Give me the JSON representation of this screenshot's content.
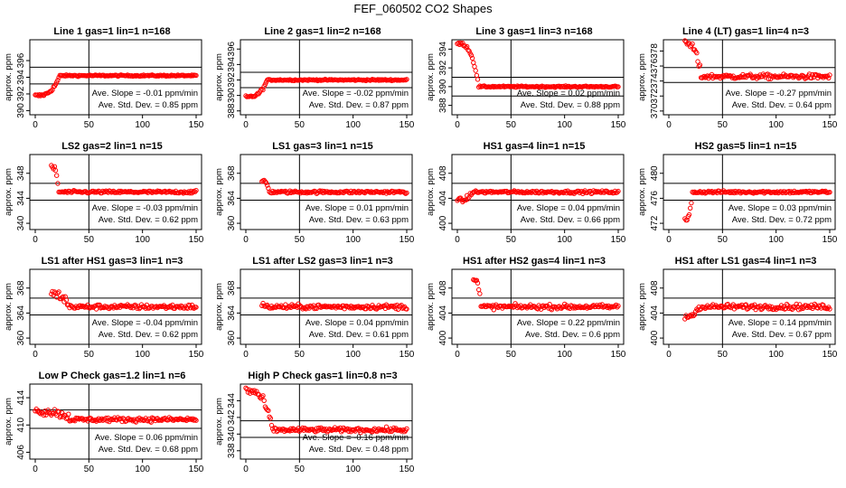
{
  "figure_title": "FEF_060502  CO2 Shapes",
  "colors": {
    "points": "#ff0000",
    "axes": "#000000",
    "background": "#ffffff"
  },
  "chart_data": [
    {
      "type": "scatter",
      "title": "Line 1 gas=1 lin=1 n=168",
      "ylabel": "approx. ppm",
      "xlim": [
        0,
        150
      ],
      "ylim": [
        389.5,
        398.5
      ],
      "xticks": [
        "0",
        "50",
        "100",
        "150"
      ],
      "yticks": [
        "390",
        "392",
        "394",
        "396"
      ],
      "vline": 50,
      "hlines": [
        393.2,
        395.2
      ],
      "slope": "Ave. Slope =  -0.01  ppm/min",
      "stddev": "Ave. Std. Dev. =  0.85  ppm",
      "shape": {
        "start": 0,
        "level": 394.2,
        "pre": 391.8,
        "rise_end": 23,
        "noise": 0.08
      }
    },
    {
      "type": "scatter",
      "title": "Line 2 gas=1 lin=2 n=168",
      "ylabel": "approx. ppm",
      "xlim": [
        0,
        150
      ],
      "ylim": [
        387.5,
        397.2
      ],
      "xticks": [
        "0",
        "50",
        "100",
        "150"
      ],
      "yticks": [
        "388",
        "390",
        "392",
        "394",
        "396"
      ],
      "vline": 50,
      "hlines": [
        391.0,
        393.0
      ],
      "slope": "Ave. Slope =  -0.02  ppm/min",
      "stddev": "Ave. Std. Dev. =  0.87  ppm",
      "shape": {
        "start": 0,
        "level": 392.0,
        "pre": 389.8,
        "rise_end": 20,
        "noise": 0.08
      }
    },
    {
      "type": "scatter",
      "title": "Line 3 gas=1 lin=3 n=168",
      "ylabel": "approx. ppm",
      "xlim": [
        0,
        150
      ],
      "ylim": [
        387.0,
        395.0
      ],
      "xticks": [
        "0",
        "50",
        "100",
        "150"
      ],
      "yticks": [
        "388",
        "390",
        "392",
        "394"
      ],
      "vline": 50,
      "hlines": [
        389.0,
        391.0
      ],
      "slope": "Ave. Slope =  0.02  ppm/min",
      "stddev": "Ave. Std. Dev. =  0.88  ppm",
      "shape": {
        "start": 0,
        "level": 390.0,
        "pre": 394.6,
        "rise_end": 20,
        "noise": 0.07
      }
    },
    {
      "type": "scatter",
      "title": "Line 4 (LT) gas=1 lin=4 n=3",
      "ylabel": "approx. ppm",
      "xlim": [
        0,
        150
      ],
      "ylim": [
        369.5,
        379.5
      ],
      "xticks": [
        "0",
        "50",
        "100",
        "150"
      ],
      "yticks": [
        "370",
        "372",
        "374",
        "376",
        "378"
      ],
      "vline": 50,
      "hlines": [
        373.8,
        375.8
      ],
      "slope": "Ave. Slope =  -0.27  ppm/min",
      "stddev": "Ave. Std. Dev. =  0.64  ppm",
      "shape": {
        "start": 15,
        "level": 374.6,
        "pre": 379.0,
        "rise_end": 30,
        "noise": 0.3
      }
    },
    {
      "type": "scatter",
      "title": "LS2 gas=2 lin=1 n=15",
      "ylabel": "approx. ppm",
      "xlim": [
        0,
        150
      ],
      "ylim": [
        339,
        351
      ],
      "xticks": [
        "0",
        "50",
        "100",
        "150"
      ],
      "yticks": [
        "340",
        "344",
        "348"
      ],
      "vline": 50,
      "hlines": [
        343.7,
        346.4
      ],
      "slope": "Ave. Slope =  -0.03  ppm/min",
      "stddev": "Ave. Std. Dev. =  0.62  ppm",
      "shape": {
        "start": 15,
        "level": 345.0,
        "pre": 349.0,
        "rise_end": 22,
        "noise": 0.2
      }
    },
    {
      "type": "scatter",
      "title": "LS1 gas=3 lin=1 n=15",
      "ylabel": "approx. ppm",
      "xlim": [
        0,
        150
      ],
      "ylim": [
        359,
        371
      ],
      "xticks": [
        "0",
        "50",
        "100",
        "150"
      ],
      "yticks": [
        "360",
        "364",
        "368"
      ],
      "vline": 50,
      "hlines": [
        363.7,
        366.4
      ],
      "slope": "Ave. Slope =  0.01  ppm/min",
      "stddev": "Ave. Std. Dev. =  0.63  ppm",
      "shape": {
        "start": 15,
        "level": 365.0,
        "pre": 366.8,
        "rise_end": 22,
        "noise": 0.2
      }
    },
    {
      "type": "scatter",
      "title": "HS1 gas=4 lin=1 n=15",
      "ylabel": "approx. ppm",
      "xlim": [
        0,
        150
      ],
      "ylim": [
        399,
        411
      ],
      "xticks": [
        "0",
        "50",
        "100",
        "150"
      ],
      "yticks": [
        "400",
        "404",
        "408"
      ],
      "vline": 50,
      "hlines": [
        403.7,
        406.4
      ],
      "slope": "Ave. Slope =  0.04  ppm/min",
      "stddev": "Ave. Std. Dev. =  0.66  ppm",
      "shape": {
        "start": 0,
        "level": 405.0,
        "pre": 403.6,
        "rise_end": 14,
        "noise": 0.2
      }
    },
    {
      "type": "scatter",
      "title": "HS2 gas=5 lin=1 n=15",
      "ylabel": "approx. ppm",
      "xlim": [
        0,
        150
      ],
      "ylim": [
        471,
        483
      ],
      "xticks": [
        "0",
        "50",
        "100",
        "150"
      ],
      "yticks": [
        "472",
        "476",
        "480"
      ],
      "vline": 50,
      "hlines": [
        475.7,
        478.4
      ],
      "slope": "Ave. Slope =  0.03  ppm/min",
      "stddev": "Ave. Std. Dev. =  0.72  ppm",
      "shape": {
        "start": 15,
        "level": 477.0,
        "pre": 472.5,
        "rise_end": 22,
        "noise": 0.2
      }
    },
    {
      "type": "scatter",
      "title": "LS1 after HS1 gas=3 lin=1 n=3",
      "ylabel": "approx. ppm",
      "xlim": [
        0,
        150
      ],
      "ylim": [
        359,
        371
      ],
      "xticks": [
        "0",
        "50",
        "100",
        "150"
      ],
      "yticks": [
        "360",
        "364",
        "368"
      ],
      "vline": 50,
      "hlines": [
        363.7,
        366.4
      ],
      "slope": "Ave. Slope =  -0.04  ppm/min",
      "stddev": "Ave. Std. Dev. =  0.62  ppm",
      "shape": {
        "start": 15,
        "level": 365.0,
        "pre": 367.0,
        "rise_end": 32,
        "noise": 0.35
      }
    },
    {
      "type": "scatter",
      "title": "LS1 after LS2 gas=3 lin=1 n=3",
      "ylabel": "approx. ppm",
      "xlim": [
        0,
        150
      ],
      "ylim": [
        359,
        371
      ],
      "xticks": [
        "0",
        "50",
        "100",
        "150"
      ],
      "yticks": [
        "360",
        "364",
        "368"
      ],
      "vline": 50,
      "hlines": [
        363.7,
        366.4
      ],
      "slope": "Ave. Slope =  0.04  ppm/min",
      "stddev": "Ave. Std. Dev. =  0.61  ppm",
      "shape": {
        "start": 15,
        "level": 365.0,
        "pre": 365.2,
        "rise_end": 18,
        "noise": 0.35
      }
    },
    {
      "type": "scatter",
      "title": "HS1 after HS2 gas=4 lin=1 n=3",
      "ylabel": "approx. ppm",
      "xlim": [
        0,
        150
      ],
      "ylim": [
        399,
        411
      ],
      "xticks": [
        "0",
        "50",
        "100",
        "150"
      ],
      "yticks": [
        "400",
        "404",
        "408"
      ],
      "vline": 50,
      "hlines": [
        403.7,
        406.4
      ],
      "slope": "Ave. Slope =  0.22  ppm/min",
      "stddev": "Ave. Std. Dev. =  0.6  ppm",
      "shape": {
        "start": 15,
        "level": 405.0,
        "pre": 409.5,
        "rise_end": 22,
        "noise": 0.35
      }
    },
    {
      "type": "scatter",
      "title": "HS1 after LS1 gas=4 lin=1 n=3",
      "ylabel": "approx. ppm",
      "xlim": [
        0,
        150
      ],
      "ylim": [
        399,
        411
      ],
      "xticks": [
        "0",
        "50",
        "100",
        "150"
      ],
      "yticks": [
        "400",
        "404",
        "408"
      ],
      "vline": 50,
      "hlines": [
        403.7,
        406.4
      ],
      "slope": "Ave. Slope =  0.14  ppm/min",
      "stddev": "Ave. Std. Dev. =  0.67  ppm",
      "shape": {
        "start": 15,
        "level": 405.0,
        "pre": 403.5,
        "rise_end": 28,
        "noise": 0.4
      }
    },
    {
      "type": "scatter",
      "title": "Low P Check gas=1.2 lin=1 n=6",
      "ylabel": "approx. ppm",
      "xlim": [
        0,
        150
      ],
      "ylim": [
        405,
        416
      ],
      "xticks": [
        "0",
        "50",
        "100",
        "150"
      ],
      "yticks": [
        "406",
        "410",
        "414"
      ],
      "vline": 50,
      "hlines": [
        409.5,
        412.2
      ],
      "slope": "Ave. Slope =  0.06  ppm/min",
      "stddev": "Ave. Std. Dev. =  0.68  ppm",
      "shape": {
        "start": 0,
        "level": 410.8,
        "pre": 412.0,
        "rise_end": 35,
        "noise": 0.3
      }
    },
    {
      "type": "scatter",
      "title": "High P Check gas=1 lin=0.8 n=3",
      "ylabel": "approx. ppm",
      "xlim": [
        0,
        150
      ],
      "ylim": [
        337,
        346
      ],
      "xticks": [
        "0",
        "50",
        "100",
        "150"
      ],
      "yticks": [
        "338",
        "340",
        "342",
        "344"
      ],
      "vline": 50,
      "hlines": [
        339.6,
        341.6
      ],
      "slope": "Ave. Slope =  -0.16  ppm/min",
      "stddev": "Ave. Std. Dev. =  0.48  ppm",
      "shape": {
        "start": 0,
        "level": 340.5,
        "pre": 345.2,
        "rise_end": 25,
        "noise": 0.25
      }
    }
  ]
}
